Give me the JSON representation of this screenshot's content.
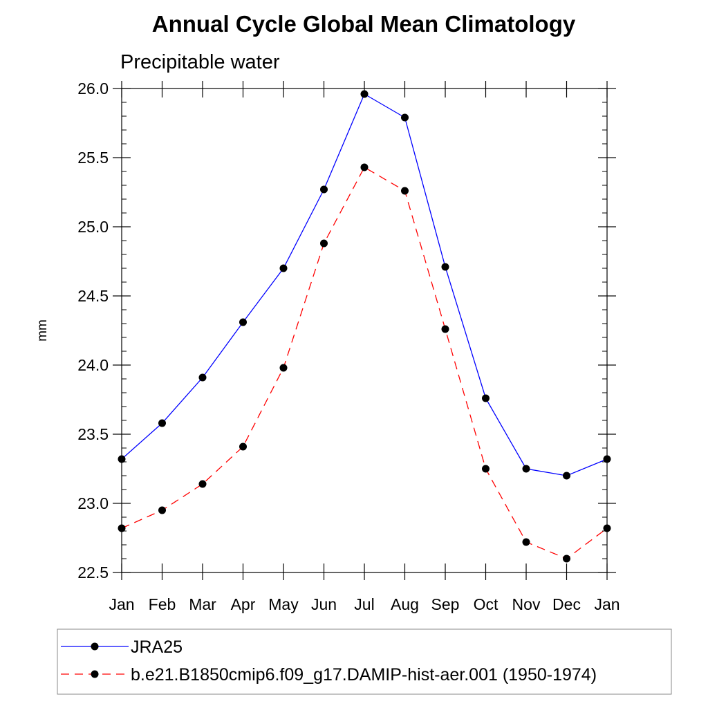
{
  "chart_data": {
    "type": "line",
    "title": "Annual Cycle Global Mean Climatology",
    "subtitle": "Precipitable water",
    "xlabel": "",
    "ylabel": "mm",
    "categories": [
      "Jan",
      "Feb",
      "Mar",
      "Apr",
      "May",
      "Jun",
      "Jul",
      "Aug",
      "Sep",
      "Oct",
      "Nov",
      "Dec",
      "Jan"
    ],
    "ylim": [
      22.5,
      26.0
    ],
    "yticks": [
      "22.5",
      "23.0",
      "23.5",
      "24.0",
      "24.5",
      "25.0",
      "25.5",
      "26.0"
    ],
    "grid": false,
    "legend_position": "bottom",
    "series": [
      {
        "name": "JRA25",
        "color": "#0000ff",
        "style": "solid",
        "marker": "circle",
        "values": [
          23.32,
          23.58,
          23.91,
          24.31,
          24.7,
          25.27,
          25.96,
          25.79,
          24.71,
          23.76,
          23.25,
          23.2,
          23.32
        ]
      },
      {
        "name": "b.e21.B1850cmip6.f09_g17.DAMIP-hist-aer.001 (1950-1974)",
        "color": "#ff0000",
        "style": "dashed",
        "marker": "circle",
        "values": [
          22.82,
          22.95,
          23.14,
          23.41,
          23.98,
          24.88,
          25.43,
          25.26,
          24.26,
          23.25,
          22.72,
          22.6,
          22.82
        ]
      }
    ]
  }
}
